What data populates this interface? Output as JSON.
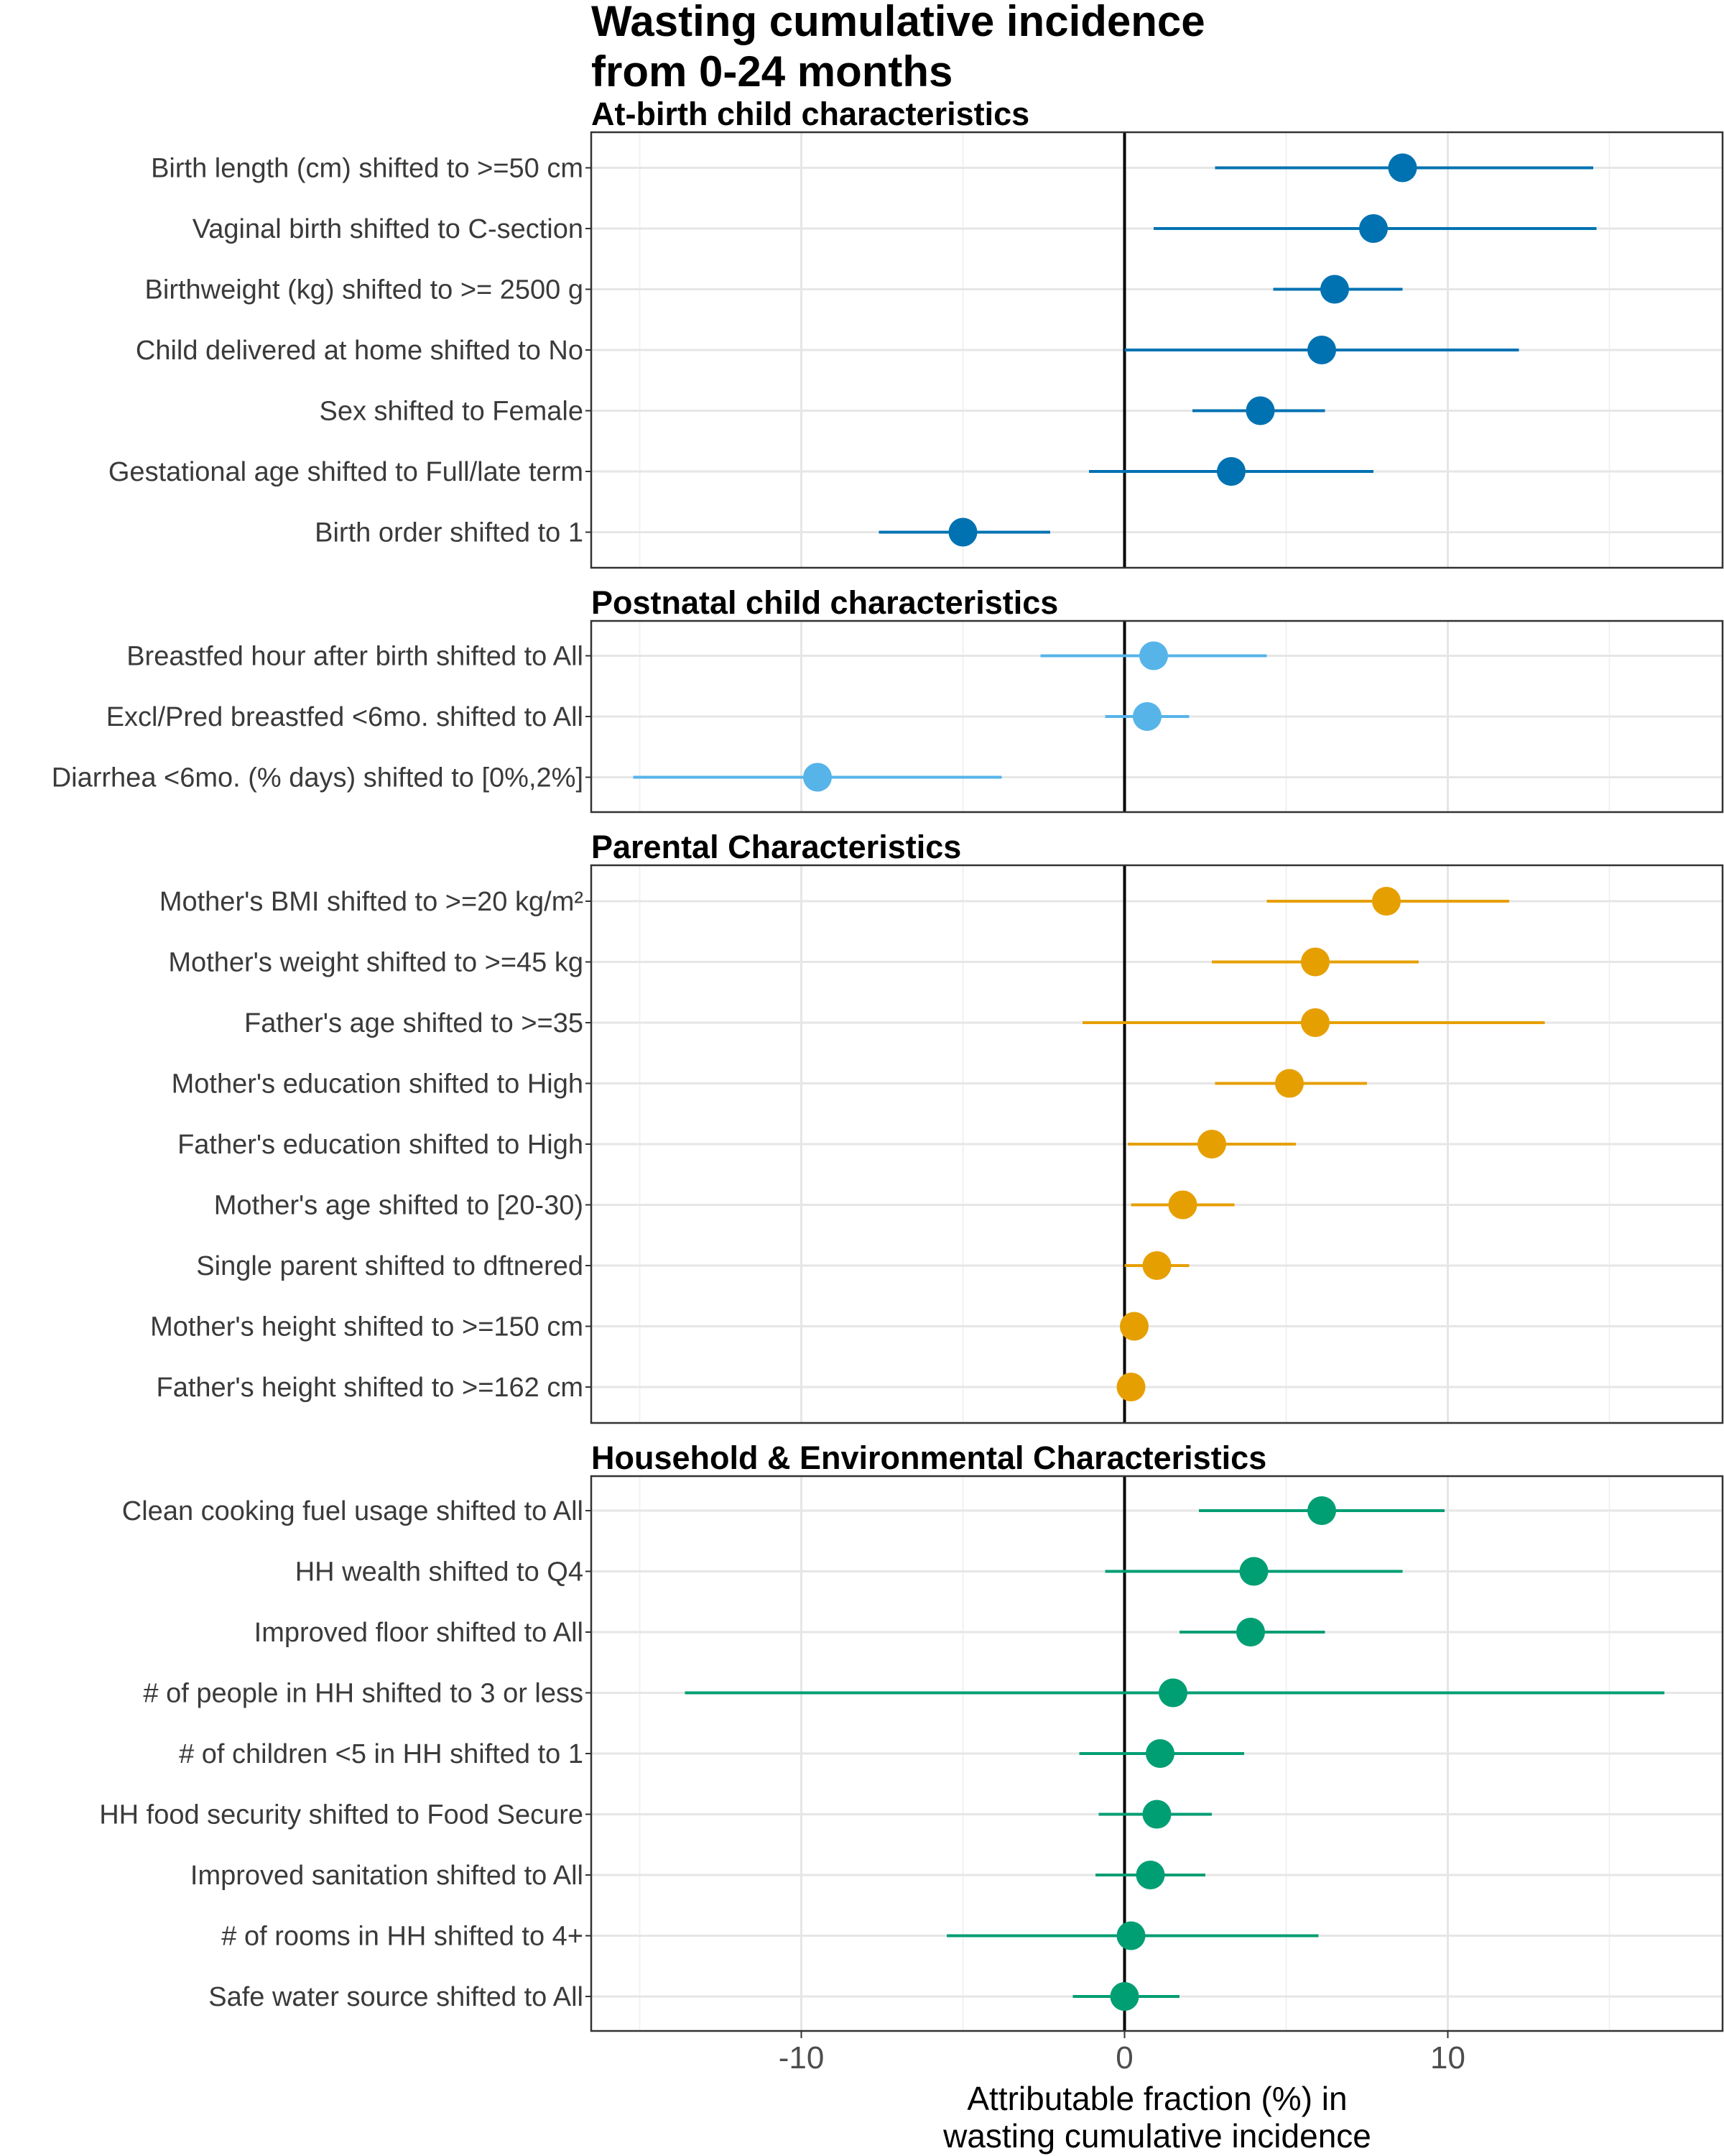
{
  "chart_data": {
    "type": "scatter",
    "subtype": "forest-plot",
    "title": [
      "Wasting cumulative incidence",
      "from 0-24 months"
    ],
    "xlabel": [
      "Attributable fraction (%) in",
      "wasting cumulative incidence"
    ],
    "xlim": [
      -16.5,
      18.5
    ],
    "xticks": [
      -10,
      0,
      10
    ],
    "reference_line": 0,
    "grid": true,
    "panels": [
      {
        "title": "At-birth child characteristics",
        "color": "#0072B2",
        "rows": [
          {
            "label": "Birth length (cm) shifted to >=50 cm",
            "est": 8.6,
            "lo": 2.8,
            "hi": 14.5
          },
          {
            "label": "Vaginal birth shifted to C-section",
            "est": 7.7,
            "lo": 0.9,
            "hi": 14.6
          },
          {
            "label": "Birthweight (kg) shifted to >= 2500 g",
            "est": 6.5,
            "lo": 4.6,
            "hi": 8.6
          },
          {
            "label": "Child delivered at home shifted to No",
            "est": 6.1,
            "lo": 0.0,
            "hi": 12.2
          },
          {
            "label": "Sex shifted to Female",
            "est": 4.2,
            "lo": 2.1,
            "hi": 6.2
          },
          {
            "label": "Gestational age shifted to Full/late term",
            "est": 3.3,
            "lo": -1.1,
            "hi": 7.7
          },
          {
            "label": "Birth order shifted to 1",
            "est": -5.0,
            "lo": -7.6,
            "hi": -2.3
          }
        ]
      },
      {
        "title": "Postnatal child characteristics",
        "color": "#56B4E9",
        "rows": [
          {
            "label": "Breastfed hour after birth shifted to All",
            "est": 0.9,
            "lo": -2.6,
            "hi": 4.4
          },
          {
            "label": "Excl/Pred breastfed <6mo. shifted to All",
            "est": 0.7,
            "lo": -0.6,
            "hi": 2.0
          },
          {
            "label": "Diarrhea <6mo. (% days) shifted to [0%,2%]",
            "est": -9.5,
            "lo": -15.2,
            "hi": -3.8
          }
        ]
      },
      {
        "title": "Parental Characteristics",
        "color": "#E69F00",
        "rows": [
          {
            "label": "Mother's BMI shifted to >=20 kg/m²",
            "est": 8.1,
            "lo": 4.4,
            "hi": 11.9
          },
          {
            "label": "Mother's weight shifted to >=45 kg",
            "est": 5.9,
            "lo": 2.7,
            "hi": 9.1
          },
          {
            "label": "Father's age shifted to >=35",
            "est": 5.9,
            "lo": -1.3,
            "hi": 13.0
          },
          {
            "label": "Mother's education shifted to High",
            "est": 5.1,
            "lo": 2.8,
            "hi": 7.5
          },
          {
            "label": "Father's education shifted to High",
            "est": 2.7,
            "lo": 0.1,
            "hi": 5.3
          },
          {
            "label": "Mother's age shifted to [20-30)",
            "est": 1.8,
            "lo": 0.2,
            "hi": 3.4
          },
          {
            "label": "Single parent shifted to dftnered",
            "est": 1.0,
            "lo": 0.0,
            "hi": 2.0
          },
          {
            "label": "Mother's height shifted to >=150 cm",
            "est": 0.3,
            "lo": 0.2,
            "hi": 0.4
          },
          {
            "label": "Father's height shifted to >=162 cm",
            "est": 0.2,
            "lo": 0.1,
            "hi": 0.3
          }
        ]
      },
      {
        "title": "Household & Environmental Characteristics",
        "color": "#009E73",
        "rows": [
          {
            "label": "Clean cooking fuel usage shifted to All",
            "est": 6.1,
            "lo": 2.3,
            "hi": 9.9
          },
          {
            "label": "HH wealth shifted to Q4",
            "est": 4.0,
            "lo": -0.6,
            "hi": 8.6
          },
          {
            "label": "Improved floor shifted to All",
            "est": 3.9,
            "lo": 1.7,
            "hi": 6.2
          },
          {
            "label": "# of people in HH shifted to 3 or less",
            "est": 1.5,
            "lo": -13.6,
            "hi": 16.7
          },
          {
            "label": "# of children <5 in HH shifted to 1",
            "est": 1.1,
            "lo": -1.4,
            "hi": 3.7
          },
          {
            "label": "HH food security shifted to Food Secure",
            "est": 1.0,
            "lo": -0.8,
            "hi": 2.7
          },
          {
            "label": "Improved sanitation shifted to All",
            "est": 0.8,
            "lo": -0.9,
            "hi": 2.5
          },
          {
            "label": "# of rooms in HH shifted to 4+",
            "est": 0.2,
            "lo": -5.5,
            "hi": 6.0
          },
          {
            "label": "Safe water source shifted to All",
            "est": 0.0,
            "lo": -1.6,
            "hi": 1.7
          }
        ]
      }
    ]
  }
}
